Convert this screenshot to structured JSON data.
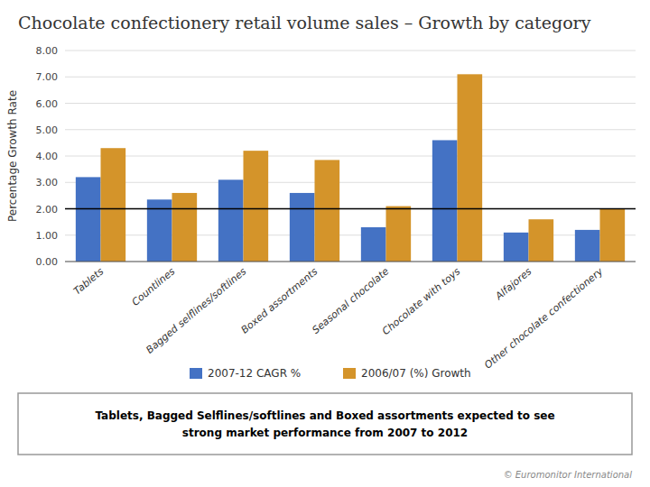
{
  "chart_data": {
    "type": "bar",
    "title": "Chocolate confectionery retail volume sales – Growth by category",
    "categories": [
      "Tablets",
      "Countlines",
      "Bagged selflines/softlines",
      "Boxed assortments",
      "Seasonal chocolate",
      "Chocolate with toys",
      "Alfajores",
      "Other chocolate confectionery"
    ],
    "series": [
      {
        "name": "2007-12 CAGR %",
        "color": "#4472C4",
        "values": [
          3.2,
          2.35,
          3.1,
          2.6,
          1.3,
          4.6,
          1.1,
          1.2
        ]
      },
      {
        "name": "2006/07 (%) Growth",
        "color": "#D4942A",
        "values": [
          4.3,
          2.6,
          4.2,
          3.85,
          2.1,
          7.1,
          1.6,
          2.0
        ]
      }
    ],
    "y_label": "Percentage Growth Rate",
    "ylim": [
      0,
      8.0
    ],
    "yticks": [
      {
        "value": 0.0,
        "label": "0.00"
      },
      {
        "value": 1.0,
        "label": "1.00"
      },
      {
        "value": 2.0,
        "label": "2.00"
      },
      {
        "value": 3.0,
        "label": "3.00"
      },
      {
        "value": 4.0,
        "label": "4.00"
      },
      {
        "value": 5.0,
        "label": "5.00"
      },
      {
        "value": 6.0,
        "label": "6.00"
      },
      {
        "value": 7.0,
        "label": "7.00"
      },
      {
        "value": 8.0,
        "label": "8.00"
      }
    ],
    "reference_line": 2.0,
    "grid": true,
    "legend": "bottom",
    "footnote": "Tablets, Bagged Selflines/softlines and Boxed assortments expected to see\nstrong market performance from 2007 to 2012",
    "copyright": "© Euromonitor International"
  }
}
